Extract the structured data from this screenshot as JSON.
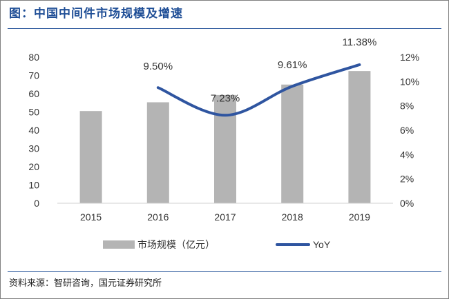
{
  "title": "图：中国中间件市场规模及增速",
  "source": "资料来源：智研咨询，国元证券研究所",
  "colors": {
    "title": "#1f4e96",
    "bar": "#b4b4b4",
    "line": "#2f55a0",
    "text": "#333333"
  },
  "chart_data": {
    "type": "bar",
    "categories": [
      "2015",
      "2016",
      "2017",
      "2018",
      "2019"
    ],
    "series": [
      {
        "name": "市场规模（亿元）",
        "type": "bar",
        "axis": "left",
        "values": [
          50.5,
          55.3,
          59.3,
          65.0,
          72.4
        ]
      },
      {
        "name": "YoY",
        "type": "line",
        "axis": "right",
        "values": [
          null,
          9.5,
          7.23,
          9.61,
          11.38
        ]
      }
    ],
    "data_labels": [
      "",
      "9.50%",
      "7.23%",
      "9.61%",
      "11.38%"
    ],
    "left_axis": {
      "ylim": [
        0,
        80
      ],
      "ticks": [
        "0",
        "10",
        "20",
        "30",
        "40",
        "50",
        "60",
        "70",
        "80"
      ]
    },
    "right_axis": {
      "ylim": [
        0,
        12
      ],
      "ticks": [
        "0%",
        "2%",
        "4%",
        "6%",
        "8%",
        "10%",
        "12%"
      ]
    },
    "grid": false,
    "legend": "bottom"
  }
}
